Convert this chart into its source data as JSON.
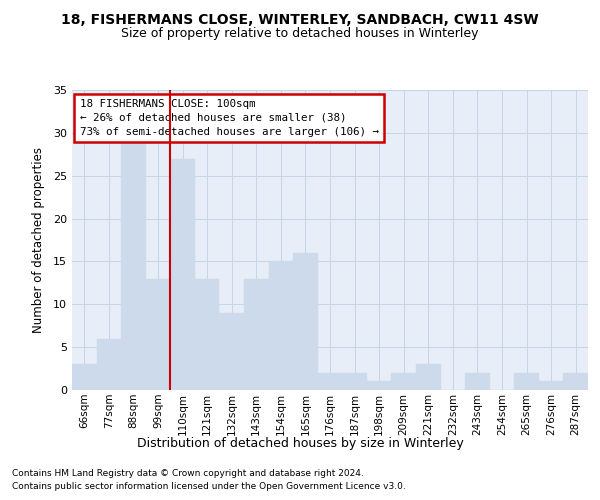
{
  "title": "18, FISHERMANS CLOSE, WINTERLEY, SANDBACH, CW11 4SW",
  "subtitle": "Size of property relative to detached houses in Winterley",
  "xlabel": "Distribution of detached houses by size in Winterley",
  "ylabel": "Number of detached properties",
  "categories": [
    "66sqm",
    "77sqm",
    "88sqm",
    "99sqm",
    "110sqm",
    "121sqm",
    "132sqm",
    "143sqm",
    "154sqm",
    "165sqm",
    "176sqm",
    "187sqm",
    "198sqm",
    "209sqm",
    "221sqm",
    "232sqm",
    "243sqm",
    "254sqm",
    "265sqm",
    "276sqm",
    "287sqm"
  ],
  "values": [
    3,
    6,
    29,
    13,
    27,
    13,
    9,
    13,
    15,
    16,
    2,
    2,
    1,
    2,
    3,
    0,
    2,
    0,
    2,
    1,
    2
  ],
  "bar_color": "#ccdaec",
  "bar_edge_color": "#ccdaec",
  "annotation_title": "18 FISHERMANS CLOSE: 100sqm",
  "annotation_line1": "← 26% of detached houses are smaller (38)",
  "annotation_line2": "73% of semi-detached houses are larger (106) →",
  "annotation_box_color": "#ffffff",
  "annotation_box_edge_color": "#cc0000",
  "vline_color": "#cc0000",
  "grid_color": "#c8d4e8",
  "background_color": "#e8eef8",
  "footer1": "Contains HM Land Registry data © Crown copyright and database right 2024.",
  "footer2": "Contains public sector information licensed under the Open Government Licence v3.0.",
  "ylim": [
    0,
    35
  ],
  "yticks": [
    0,
    5,
    10,
    15,
    20,
    25,
    30,
    35
  ]
}
